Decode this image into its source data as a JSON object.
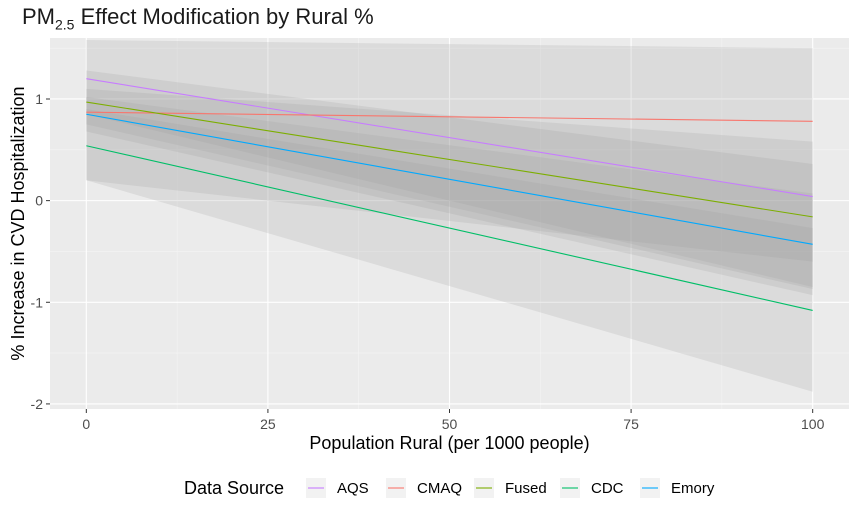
{
  "chart_data": {
    "type": "line",
    "title": {
      "prefix": "PM",
      "subscript": "2.5",
      "suffix": " Effect Modification by Rural %"
    },
    "xlabel": "Population Rural (per 1000 people)",
    "ylabel": "% Increase in CVD Hospitalization",
    "xlim": [
      -5,
      105
    ],
    "ylim": [
      -2.05,
      1.6
    ],
    "x_ticks": [
      0,
      25,
      50,
      75,
      100
    ],
    "x_tick_labels": [
      "0",
      "25",
      "50",
      "75",
      "100"
    ],
    "y_ticks": [
      -2,
      -1,
      0,
      1
    ],
    "y_tick_labels": [
      "-2",
      "-1",
      "0",
      "1"
    ],
    "grid": true,
    "legend_title": "Data Source",
    "legend_position": "bottom",
    "x": [
      0,
      100
    ],
    "series": [
      {
        "name": "AQS",
        "color": "#C77CFF",
        "values": [
          1.2,
          0.04
        ],
        "lower": [
          0.85,
          -0.85
        ],
        "upper": [
          1.28,
          0.36
        ]
      },
      {
        "name": "CMAQ",
        "color": "#F8766D",
        "values": [
          0.87,
          0.78
        ],
        "lower": [
          0.2,
          -0.6
        ],
        "upper": [
          1.58,
          1.5
        ]
      },
      {
        "name": "Fused",
        "color": "#7CAE00",
        "values": [
          0.97,
          -0.16
        ],
        "lower": [
          0.75,
          -0.87
        ],
        "upper": [
          1.1,
          0.58
        ]
      },
      {
        "name": "CDC",
        "color": "#00BE67",
        "values": [
          0.54,
          -1.08
        ],
        "lower": [
          0.2,
          -1.88
        ],
        "upper": [
          0.9,
          -0.27
        ]
      },
      {
        "name": "Emory",
        "color": "#00A9FF",
        "values": [
          0.85,
          -0.43
        ],
        "lower": [
          0.68,
          -0.93
        ],
        "upper": [
          1.02,
          0.07
        ]
      }
    ]
  }
}
